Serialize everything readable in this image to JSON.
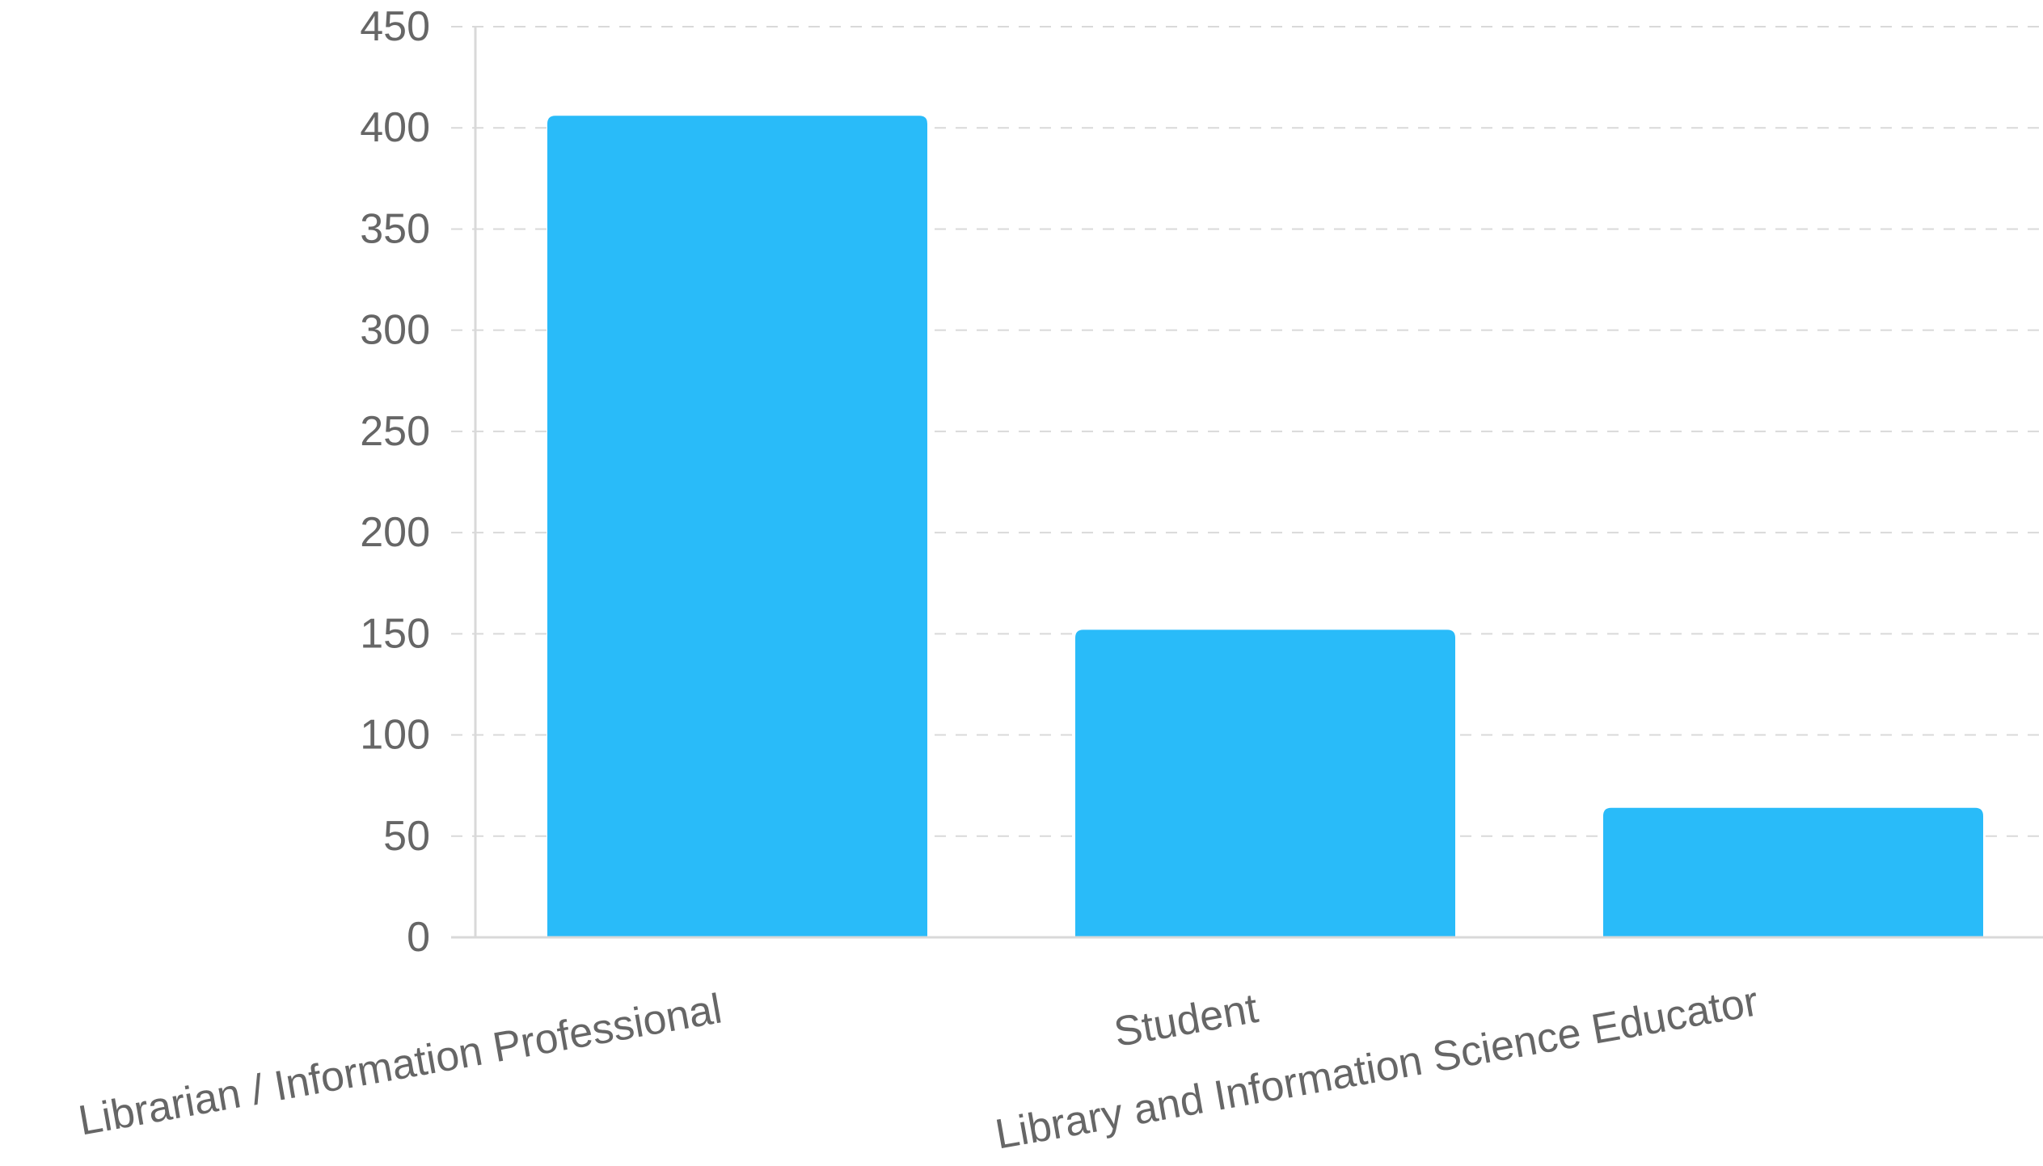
{
  "chart_data": {
    "type": "bar",
    "categories": [
      "Librarian / Information Professional",
      "Student",
      "Library and Information Science Educator"
    ],
    "series": [
      {
        "values": [
          406,
          152,
          64
        ],
        "color": "#29bbf9"
      }
    ],
    "ylim": [
      0,
      450
    ],
    "yticks": [
      "0",
      "50",
      "100",
      "150",
      "200",
      "250",
      "300",
      "350",
      "400",
      "450"
    ],
    "grid": true,
    "grid_color": "#d9d9d9",
    "label_color": "#666666",
    "title": "",
    "xlabel": "",
    "ylabel": ""
  }
}
